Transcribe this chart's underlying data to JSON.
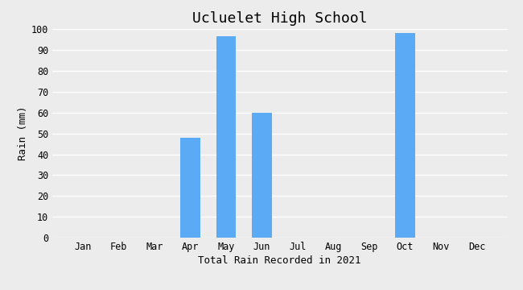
{
  "title": "Ucluelet High School",
  "xlabel": "Total Rain Recorded in 2021",
  "ylabel": "Rain (mm)",
  "months": [
    "Jan",
    "Feb",
    "Mar",
    "Apr",
    "May",
    "Jun",
    "Jul",
    "Aug",
    "Sep",
    "Oct",
    "Nov",
    "Dec"
  ],
  "values": [
    0,
    0,
    0,
    48,
    96.5,
    60,
    0,
    0,
    0,
    98,
    0,
    0
  ],
  "bar_color": "#5BAAF5",
  "ylim": [
    0,
    100
  ],
  "yticks": [
    0,
    10,
    20,
    30,
    40,
    50,
    60,
    70,
    80,
    90,
    100
  ],
  "background_color": "#ECECEC",
  "grid_color": "#FFFFFF",
  "title_fontsize": 13,
  "label_fontsize": 9,
  "tick_fontsize": 8.5
}
